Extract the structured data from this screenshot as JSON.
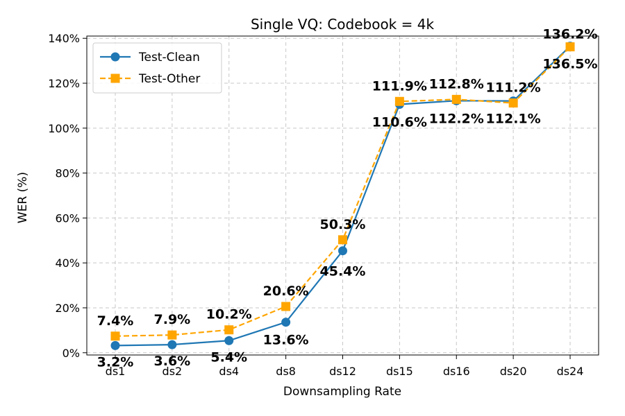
{
  "chart_data": {
    "type": "line",
    "title": "Single VQ: Codebook = 4k",
    "xlabel": "Downsampling Rate",
    "ylabel": "WER (%)",
    "categories": [
      "ds1",
      "ds2",
      "ds4",
      "ds8",
      "ds12",
      "ds15",
      "ds16",
      "ds20",
      "ds24"
    ],
    "ylim": [
      -1,
      141
    ],
    "yticks": [
      0,
      20,
      40,
      60,
      80,
      100,
      120,
      140
    ],
    "ytick_labels": [
      "0%",
      "20%",
      "40%",
      "60%",
      "80%",
      "100%",
      "120%",
      "140%"
    ],
    "grid": true,
    "legend_position": "top-left",
    "series": [
      {
        "name": "Test-Clean",
        "color": "#1f77b4",
        "marker": "circle",
        "line_style": "solid",
        "values": [
          3.2,
          3.6,
          5.4,
          13.6,
          45.4,
          110.6,
          112.2,
          112.1,
          136.5
        ],
        "labels": [
          "3.2%",
          "3.6%",
          "5.4%",
          "13.6%",
          "45.4%",
          "110.6%",
          "112.2%",
          "112.1%",
          "136.5%"
        ]
      },
      {
        "name": "Test-Other",
        "color": "#ffa500",
        "marker": "square",
        "line_style": "dashed",
        "values": [
          7.4,
          7.9,
          10.2,
          20.6,
          50.3,
          111.9,
          112.8,
          111.2,
          136.2
        ],
        "labels": [
          "7.4%",
          "7.9%",
          "10.2%",
          "20.6%",
          "50.3%",
          "111.9%",
          "112.8%",
          "111.2%",
          "136.2%"
        ]
      }
    ]
  }
}
